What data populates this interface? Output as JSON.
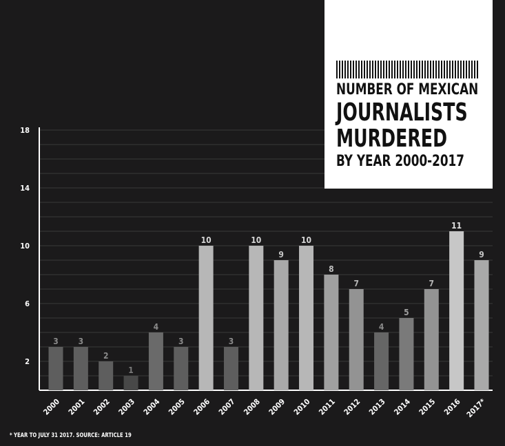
{
  "chart_data": {
    "type": "bar",
    "title": "NUMBER OF MEXICAN JOURNALISTS MURDERED BY YEAR 2000-2017",
    "xlabel": "",
    "ylabel": "",
    "ylim": [
      0,
      18
    ],
    "ytick_values": [
      2,
      6,
      10,
      14,
      18
    ],
    "ytick_labels": [
      "2",
      "6",
      "10",
      "14",
      "18"
    ],
    "categories": [
      "2000",
      "2001",
      "2002",
      "2003",
      "2004",
      "2005",
      "2006",
      "2007",
      "2008",
      "2009",
      "2010",
      "2011",
      "2012",
      "2013",
      "2014",
      "2015",
      "2016",
      "2017*"
    ],
    "values": [
      3,
      3,
      2,
      1,
      4,
      3,
      10,
      3,
      10,
      9,
      10,
      8,
      7,
      4,
      5,
      7,
      11,
      9
    ],
    "bar_colors": [
      "#5e5e5e",
      "#5e5e5e",
      "#5e5e5e",
      "#484848",
      "#6a6a6a",
      "#5e5e5e",
      "#b7b7b7",
      "#5e5e5e",
      "#b7b7b7",
      "#a9a9a9",
      "#b7b7b7",
      "#a0a0a0",
      "#939393",
      "#666666",
      "#7a7a7a",
      "#939393",
      "#c7c7c7",
      "#a9a9a9"
    ],
    "label_colors": [
      "#8a8a8a",
      "#8a8a8a",
      "#8a8a8a",
      "#7a7a7a",
      "#8a8a8a",
      "#8a8a8a",
      "#d6d6d6",
      "#8a8a8a",
      "#d6d6d6",
      "#c6c6c6",
      "#d6d6d6",
      "#c0c0c0",
      "#b6b6b6",
      "#8a8a8a",
      "#9f9f9f",
      "#b6b6b6",
      "#e0e0e0",
      "#c6c6c6"
    ],
    "grid": true,
    "background": "#1b1a1b"
  },
  "title_lines": [
    "NUMBER OF MEXICAN",
    "JOURNALISTS",
    "MURDERED",
    "BY YEAR 2000-2017"
  ],
  "footnote": "* YEAR TO JULY 31 2017. SOURCE: ARTICLE 19"
}
